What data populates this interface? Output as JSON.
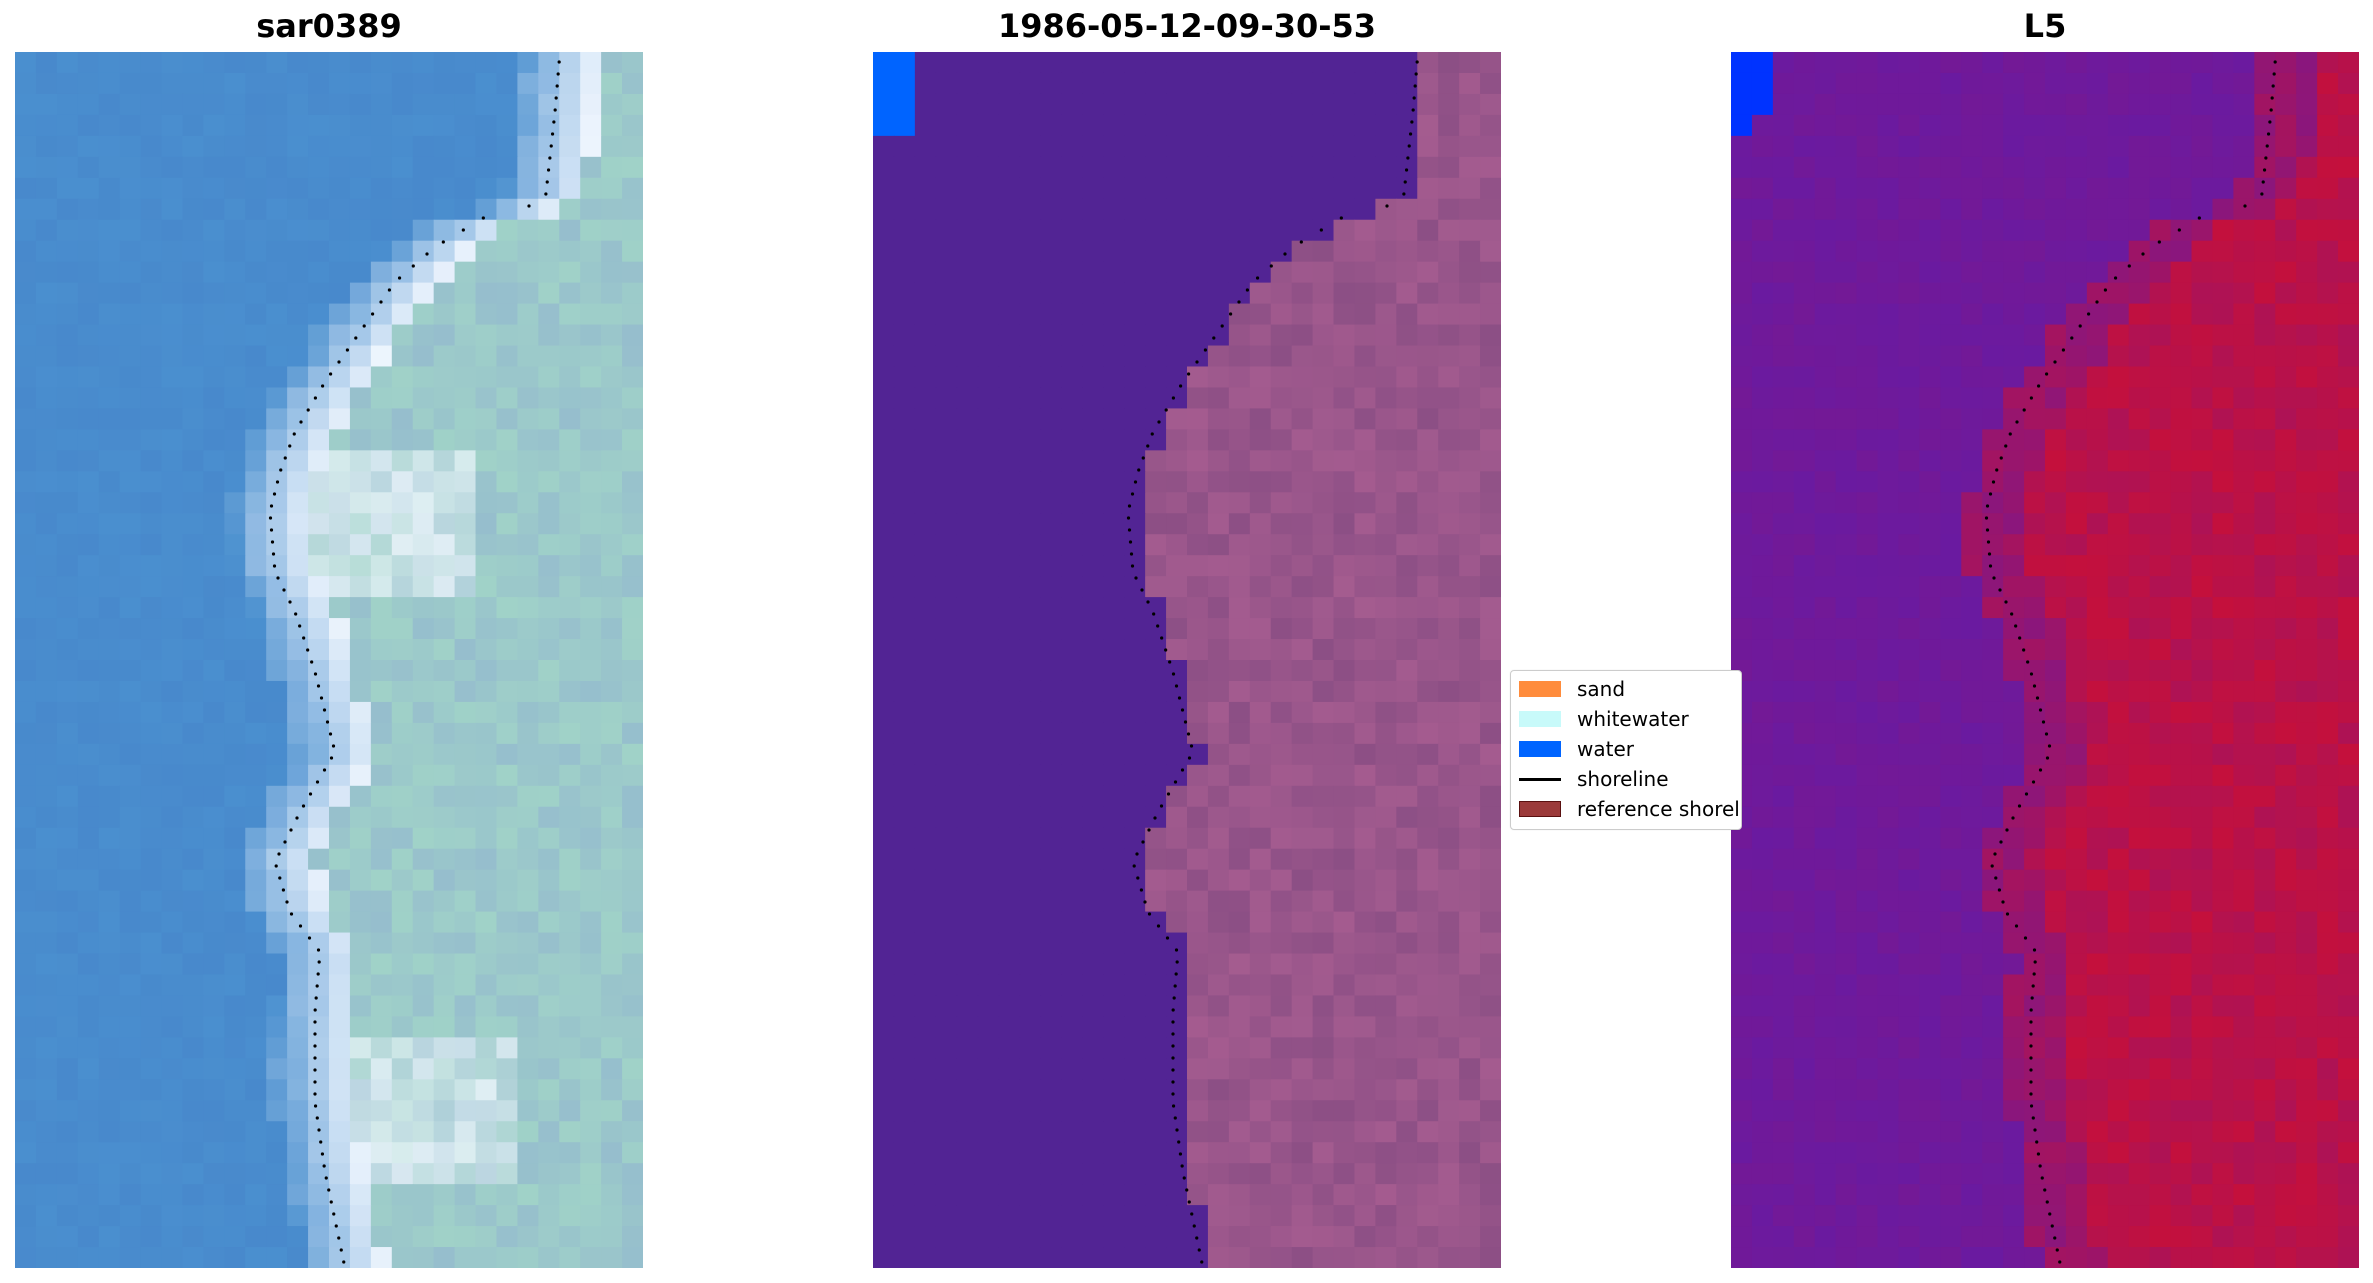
{
  "panels": [
    {
      "title": "sar0389",
      "scheme": "rgb"
    },
    {
      "title": "1986-05-12-09-30-53",
      "scheme": "classified"
    },
    {
      "title": "L5",
      "scheme": "index"
    }
  ],
  "legend": {
    "items": [
      {
        "label": "sand",
        "kind": "patch",
        "color": "#ff8c3c"
      },
      {
        "label": "whitewater",
        "kind": "patch",
        "color": "#c8fafa"
      },
      {
        "label": "water",
        "kind": "patch",
        "color": "#0064ff"
      },
      {
        "label": "shoreline",
        "kind": "line",
        "color": "#000000"
      },
      {
        "label": "reference shoreline",
        "kind": "patch",
        "color": "#9b3a3a"
      }
    ]
  },
  "colors": {
    "rgb_water": "#4a8fcf",
    "rgb_surf": "#f2f8ff",
    "classified_water": "#522494",
    "classified_land": "#8c4f85",
    "classified_water_pixel": "#0064ff",
    "index_low": "#6a1aa0",
    "index_high": "#c4103c",
    "index_water_pixel": "#0033ff",
    "shoreline_dots": "#000000"
  }
}
